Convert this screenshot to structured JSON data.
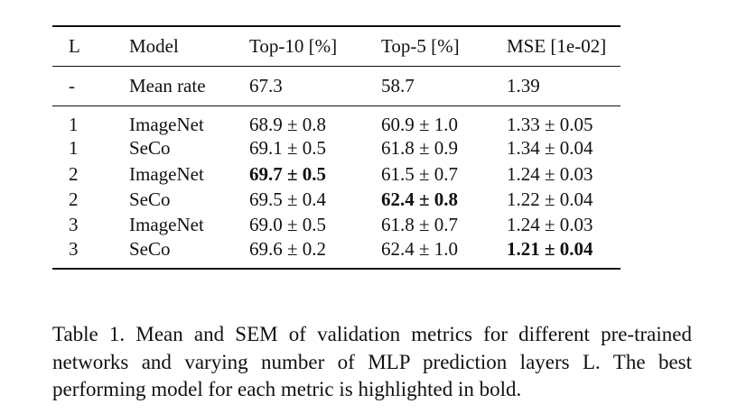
{
  "table": {
    "headers": {
      "l": "L",
      "model": "Model",
      "top10": "Top-10 [%]",
      "top5": "Top-5 [%]",
      "mse": "MSE [1e-02]"
    },
    "baseline": {
      "l": "-",
      "model": "Mean rate",
      "top10": "67.3",
      "top5": "58.7",
      "mse": "1.39"
    },
    "rows": [
      {
        "l": "1",
        "model": "ImageNet",
        "top10": "68.9 ± 0.8",
        "top5": "60.9 ± 1.0",
        "mse": "1.33 ± 0.05"
      },
      {
        "l": "1",
        "model": "SeCo",
        "top10": "69.1 ± 0.5",
        "top5": "61.8 ± 0.9",
        "mse": "1.34 ± 0.04"
      },
      {
        "l": "2",
        "model": "ImageNet",
        "top10": "69.7 ± 0.5",
        "top5": "61.5 ± 0.7",
        "mse": "1.24 ± 0.03"
      },
      {
        "l": "2",
        "model": "SeCo",
        "top10": "69.5 ± 0.4",
        "top5": "62.4 ± 0.8",
        "mse": "1.22 ± 0.04"
      },
      {
        "l": "3",
        "model": "ImageNet",
        "top10": "69.0 ± 0.5",
        "top5": "61.8 ± 0.7",
        "mse": "1.24 ± 0.03"
      },
      {
        "l": "3",
        "model": "SeCo",
        "top10": "69.6 ± 0.2",
        "top5": "62.4 ± 1.0",
        "mse": "1.21 ± 0.04"
      }
    ]
  },
  "caption": {
    "text": "Table 1. Mean and SEM of validation metrics for different pre-trained networks and varying number of MLP prediction layers L. The best performing model for each metric is highlighted in bold."
  }
}
